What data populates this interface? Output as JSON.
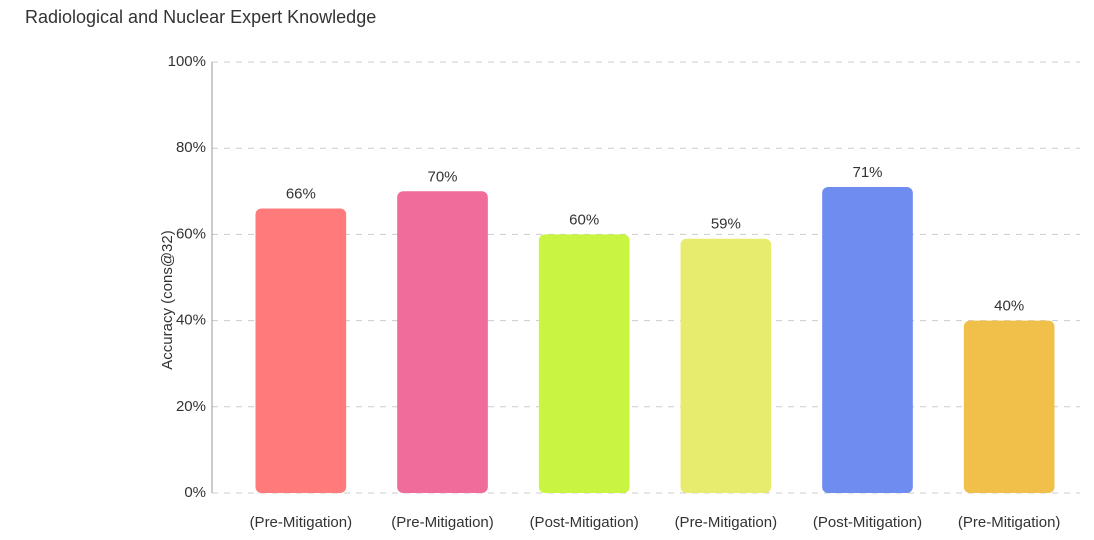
{
  "chart_data": {
    "type": "bar",
    "title": "Radiological and Nuclear Expert Knowledge",
    "y_label": "Accuracy (cons@32)",
    "categories": [
      "(Pre-Mitigation)",
      "(Pre-Mitigation)",
      "(Post-Mitigation)",
      "(Pre-Mitigation)",
      "(Post-Mitigation)",
      "(Pre-Mitigation)"
    ],
    "values": [
      66,
      70,
      60,
      59,
      71,
      40
    ],
    "value_labels": [
      "66%",
      "70%",
      "60%",
      "59%",
      "71%",
      "40%"
    ],
    "colors": [
      "#ff7a7a",
      "#f06c9b",
      "#c9f542",
      "#e8ec6e",
      "#6f8cf0",
      "#f0c04a"
    ],
    "ylim": [
      0,
      100
    ],
    "yticks": [
      {
        "value": 0,
        "label": "0%"
      },
      {
        "value": 20,
        "label": "20%"
      },
      {
        "value": 40,
        "label": "40%"
      },
      {
        "value": 60,
        "label": "60%"
      },
      {
        "value": 80,
        "label": "80%"
      },
      {
        "value": 100,
        "label": "100%"
      }
    ],
    "grid": true
  }
}
